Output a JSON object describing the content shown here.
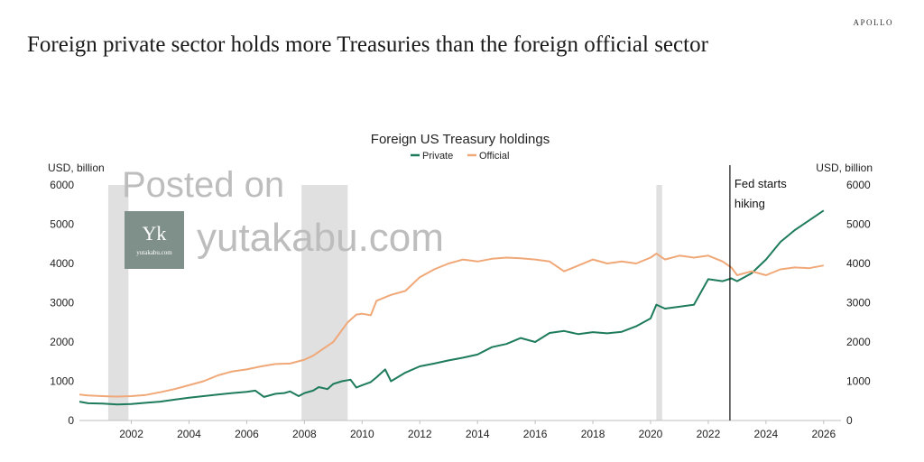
{
  "header": {
    "headline": "Foreign private sector holds more Treasuries than the foreign official sector",
    "brand": "APOLLO"
  },
  "watermark": {
    "line1": "Posted on",
    "line2": "yutakabu.com",
    "logo_letters": "Yk",
    "logo_caption": "yutakabu.com"
  },
  "chart_data": {
    "type": "line",
    "title": "Foreign US Treasury holdings",
    "ylabel_left": "USD, billion",
    "ylabel_right": "USD, billion",
    "ylim": [
      0,
      6000
    ],
    "xlim": [
      2000.2,
      2026.6
    ],
    "yticks": [
      0,
      1000,
      2000,
      3000,
      4000,
      5000,
      6000
    ],
    "xticks": [
      2002,
      2004,
      2006,
      2008,
      2010,
      2012,
      2014,
      2016,
      2018,
      2020,
      2022,
      2024,
      2026
    ],
    "grid": false,
    "legend": "top-center",
    "colors": {
      "Private": "#1e7b5c",
      "Official": "#f0a878",
      "recession": "#d6d6d6"
    },
    "recessions": [
      [
        2001.2,
        2001.9
      ],
      [
        2007.9,
        2009.5
      ],
      [
        2020.2,
        2020.4
      ]
    ],
    "annotation": {
      "x": 2022.75,
      "lines": [
        "Fed starts",
        "hiking"
      ]
    },
    "series": [
      {
        "name": "Private",
        "x": [
          2000.2,
          2000.5,
          2001.0,
          2001.5,
          2002.0,
          2002.5,
          2003.0,
          2003.5,
          2004.0,
          2004.5,
          2005.0,
          2005.5,
          2006.0,
          2006.3,
          2006.6,
          2007.0,
          2007.3,
          2007.5,
          2007.8,
          2008.0,
          2008.3,
          2008.5,
          2008.8,
          2009.0,
          2009.3,
          2009.6,
          2009.8,
          2010.0,
          2010.3,
          2010.5,
          2010.8,
          2011.0,
          2011.5,
          2012.0,
          2012.5,
          2013.0,
          2013.5,
          2014.0,
          2014.5,
          2015.0,
          2015.5,
          2016.0,
          2016.5,
          2017.0,
          2017.5,
          2018.0,
          2018.5,
          2019.0,
          2019.5,
          2020.0,
          2020.2,
          2020.5,
          2021.0,
          2021.5,
          2022.0,
          2022.5,
          2022.8,
          2023.0,
          2023.5,
          2024.0,
          2024.5,
          2025.0,
          2025.5,
          2026.0
        ],
        "values": [
          480,
          440,
          430,
          410,
          420,
          450,
          480,
          530,
          580,
          620,
          660,
          700,
          730,
          760,
          600,
          680,
          700,
          740,
          620,
          700,
          760,
          850,
          800,
          930,
          1000,
          1040,
          840,
          900,
          980,
          1100,
          1300,
          1000,
          1220,
          1380,
          1450,
          1530,
          1600,
          1680,
          1870,
          1950,
          2100,
          2000,
          2230,
          2280,
          2200,
          2250,
          2220,
          2260,
          2400,
          2600,
          2950,
          2850,
          2900,
          2950,
          3600,
          3550,
          3620,
          3550,
          3750,
          4100,
          4550,
          4850,
          5100,
          5350
        ]
      },
      {
        "name": "Official",
        "x": [
          2000.2,
          2000.5,
          2001.0,
          2001.5,
          2002.0,
          2002.5,
          2003.0,
          2003.5,
          2004.0,
          2004.5,
          2005.0,
          2005.5,
          2006.0,
          2006.5,
          2007.0,
          2007.5,
          2008.0,
          2008.3,
          2008.6,
          2009.0,
          2009.3,
          2009.5,
          2009.8,
          2010.0,
          2010.3,
          2010.5,
          2011.0,
          2011.5,
          2012.0,
          2012.5,
          2013.0,
          2013.5,
          2014.0,
          2014.5,
          2015.0,
          2015.5,
          2016.0,
          2016.5,
          2017.0,
          2017.5,
          2018.0,
          2018.5,
          2019.0,
          2019.5,
          2020.0,
          2020.2,
          2020.5,
          2021.0,
          2021.5,
          2022.0,
          2022.5,
          2022.8,
          2023.0,
          2023.5,
          2024.0,
          2024.5,
          2025.0,
          2025.5,
          2026.0
        ],
        "values": [
          660,
          640,
          620,
          610,
          620,
          650,
          720,
          800,
          900,
          1000,
          1150,
          1250,
          1300,
          1380,
          1440,
          1450,
          1550,
          1650,
          1800,
          2000,
          2300,
          2500,
          2700,
          2720,
          2680,
          3050,
          3200,
          3300,
          3650,
          3850,
          4000,
          4100,
          4050,
          4120,
          4150,
          4130,
          4100,
          4050,
          3800,
          3950,
          4100,
          4000,
          4050,
          4000,
          4150,
          4250,
          4100,
          4200,
          4150,
          4200,
          4050,
          3900,
          3700,
          3800,
          3700,
          3850,
          3900,
          3880,
          3950
        ]
      }
    ]
  }
}
